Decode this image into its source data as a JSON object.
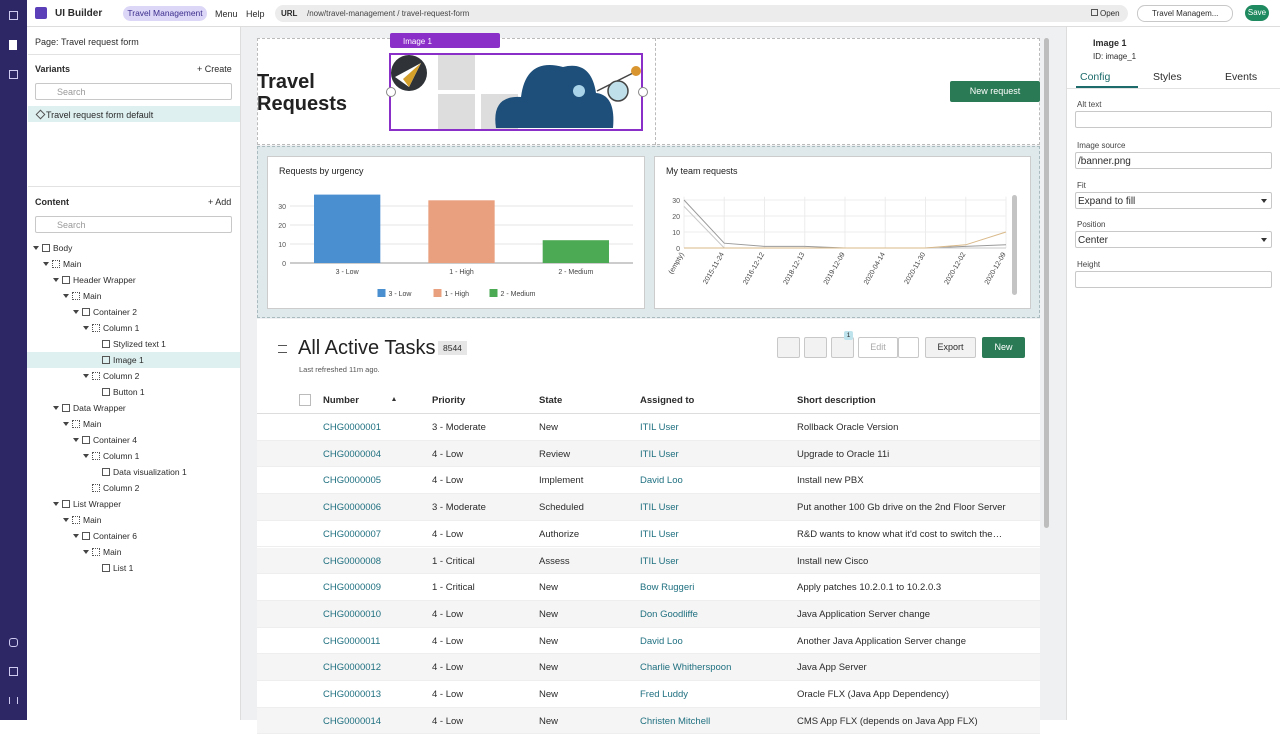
{
  "topbar": {
    "app": "UI Builder",
    "tab": "Travel Management",
    "menu": "Menu",
    "help": "Help",
    "url_label": "URL",
    "url": "/now/travel-management / travel-request-form",
    "open": "Open",
    "experience": "Travel Managem...",
    "save": "Save"
  },
  "left": {
    "page_label": "Page:",
    "page": "Travel request form",
    "variants": "Variants",
    "create": "+ Create",
    "variants_search": "Search",
    "variant": "Travel request form default",
    "content": "Content",
    "add": "+ Add",
    "content_search": "Search"
  },
  "tree": [
    {
      "label": "Body",
      "children": [
        {
          "label": "Main",
          "children": [
            {
              "label": "Header Wrapper",
              "children": [
                {
                  "label": "Main",
                  "children": [
                    {
                      "label": "Container 2",
                      "children": [
                        {
                          "label": "Column 1",
                          "children": [
                            {
                              "label": "Stylized text 1"
                            },
                            {
                              "label": "Image 1",
                              "selected": true
                            }
                          ]
                        },
                        {
                          "label": "Column 2",
                          "children": [
                            {
                              "label": "Button 1"
                            }
                          ]
                        }
                      ]
                    }
                  ]
                }
              ]
            },
            {
              "label": "Data Wrapper",
              "children": [
                {
                  "label": "Main",
                  "children": [
                    {
                      "label": "Container 4",
                      "children": [
                        {
                          "label": "Column 1",
                          "children": [
                            {
                              "label": "Data visualization 1"
                            }
                          ]
                        },
                        {
                          "label": "Column 2"
                        }
                      ]
                    }
                  ]
                }
              ]
            },
            {
              "label": "List Wrapper",
              "children": [
                {
                  "label": "Main",
                  "children": [
                    {
                      "label": "Container 6",
                      "children": [
                        {
                          "label": "Main",
                          "children": [
                            {
                              "label": "List 1"
                            }
                          ]
                        }
                      ]
                    }
                  ]
                }
              ]
            }
          ]
        }
      ]
    }
  ],
  "canvas": {
    "title": "Travel Requests",
    "image_toolbar": "Image 1",
    "new_request": "New request"
  },
  "chart_data": [
    {
      "type": "bar",
      "title": "Requests by urgency",
      "categories": [
        "3 - Low",
        "1 - High",
        "2 - Medium"
      ],
      "values": [
        36,
        33,
        12
      ],
      "colors": [
        "#4a8fd0",
        "#e9a07f",
        "#4caa55"
      ],
      "ylim": [
        0,
        36
      ],
      "yticks": [
        0,
        10,
        20,
        30
      ],
      "grid": true,
      "legend": "bottom"
    },
    {
      "type": "line",
      "title": "My team requests",
      "categories": [
        "(empty)",
        "2015-11-24",
        "2016-12-12",
        "2018-12-13",
        "2019-12-09",
        "2020-04-14",
        "2020-11-30",
        "2020-12-02",
        "2020-12-09"
      ],
      "series": [
        {
          "color": "#9a9a9a",
          "values": [
            30,
            3,
            1,
            1,
            0,
            0,
            0,
            1,
            2
          ]
        },
        {
          "color": "#c9c9c9",
          "values": [
            26,
            0,
            0,
            0,
            0,
            0,
            0,
            0,
            0
          ]
        },
        {
          "color": "#d9b98a",
          "values": [
            0,
            0,
            0,
            0,
            0,
            0,
            0,
            2,
            10
          ]
        }
      ],
      "ylim": [
        0,
        32
      ],
      "yticks": [
        0,
        10,
        20,
        30
      ],
      "grid": true
    }
  ],
  "list": {
    "title": "All Active Tasks",
    "count": 8544,
    "refreshed": "Last refreshed 11m ago.",
    "filter_count": 1,
    "edit": "Edit",
    "export": "Export",
    "new": "New",
    "columns": [
      "Number",
      "Priority",
      "State",
      "Assigned to",
      "Short description"
    ],
    "rows": [
      [
        "CHG0000001",
        "3 - Moderate",
        "New",
        "ITIL User",
        "Rollback Oracle Version"
      ],
      [
        "CHG0000004",
        "4 - Low",
        "Review",
        "ITIL User",
        "Upgrade to Oracle 11i"
      ],
      [
        "CHG0000005",
        "4 - Low",
        "Implement",
        "David Loo",
        "Install new PBX"
      ],
      [
        "CHG0000006",
        "3 - Moderate",
        "Scheduled",
        "ITIL User",
        "Put another 100 Gb drive on the 2nd Floor Server"
      ],
      [
        "CHG0000007",
        "4 - Low",
        "Authorize",
        "ITIL User",
        "R&D wants to know what it'd cost to switch the…"
      ],
      [
        "CHG0000008",
        "1 - Critical",
        "Assess",
        "ITIL User",
        "Install new Cisco"
      ],
      [
        "CHG0000009",
        "1 - Critical",
        "New",
        "Bow Ruggeri",
        "Apply patches 10.2.0.1 to 10.2.0.3"
      ],
      [
        "CHG0000010",
        "4 - Low",
        "New",
        "Don Goodliffe",
        "Java Application Server change"
      ],
      [
        "CHG0000011",
        "4 - Low",
        "New",
        "David Loo",
        "Another Java Application Server change"
      ],
      [
        "CHG0000012",
        "4 - Low",
        "New",
        "Charlie Whitherspoon",
        "Java App Server"
      ],
      [
        "CHG0000013",
        "4 - Low",
        "New",
        "Fred Luddy",
        "Oracle FLX (Java App Dependency)"
      ],
      [
        "CHG0000014",
        "4 - Low",
        "New",
        "Christen Mitchell",
        "CMS App FLX (depends on Java App FLX)"
      ]
    ]
  },
  "right": {
    "name": "Image 1",
    "id": "ID: image_1",
    "tabs": [
      "Config",
      "Styles",
      "Events"
    ],
    "fields": [
      {
        "label": "Alt text"
      },
      {
        "label": "Image source",
        "value": "/banner.png"
      },
      {
        "label": "Fit",
        "value": "Expand to fill",
        "dropdown": true
      },
      {
        "label": "Position",
        "value": "Center",
        "dropdown": true
      },
      {
        "label": "Height"
      }
    ]
  }
}
